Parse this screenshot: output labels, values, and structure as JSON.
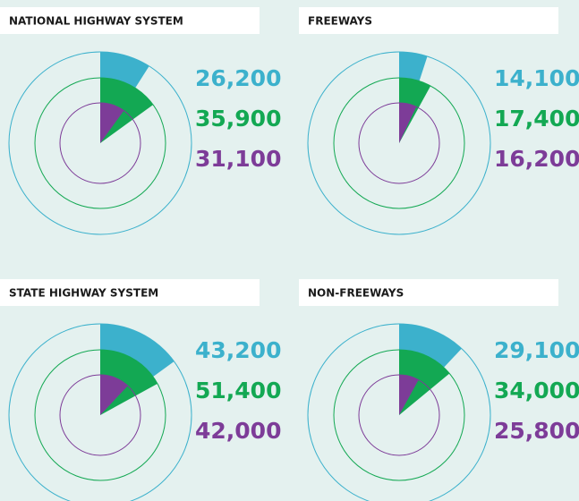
{
  "panels": [
    {
      "title": "NATIONAL HIGHWAY SYSTEM",
      "rings": [
        {
          "label": "26,200",
          "share": 9,
          "color": "#3cb1cc"
        },
        {
          "label": "35,900",
          "share": 15,
          "color": "#13a853"
        },
        {
          "label": "31,100",
          "share": 10,
          "color": "#7d3c98"
        }
      ]
    },
    {
      "title": "FREEWAYS",
      "rings": [
        {
          "label": "14,100",
          "share": 5,
          "color": "#3cb1cc"
        },
        {
          "label": "17,400",
          "share": 8,
          "color": "#13a853"
        },
        {
          "label": "16,200",
          "share": 7,
          "color": "#7d3c98"
        }
      ]
    },
    {
      "title": "STATE HIGHWAY SYSTEM",
      "rings": [
        {
          "label": "43,200",
          "share": 15,
          "color": "#3cb1cc"
        },
        {
          "label": "51,400",
          "share": 17,
          "color": "#13a853"
        },
        {
          "label": "42,000",
          "share": 12,
          "color": "#7d3c98"
        }
      ]
    },
    {
      "title": "NON-FREEWAYS",
      "rings": [
        {
          "label": "29,100",
          "share": 12,
          "color": "#3cb1cc"
        },
        {
          "label": "34,000",
          "share": 14,
          "color": "#13a853"
        },
        {
          "label": "25,800",
          "share": 8,
          "color": "#7d3c98"
        }
      ]
    }
  ]
}
